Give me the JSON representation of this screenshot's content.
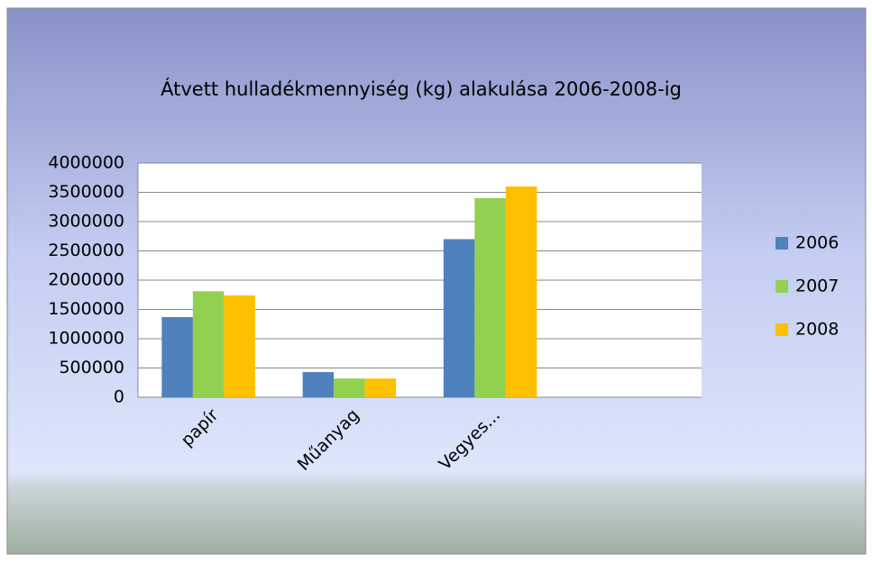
{
  "chart_data": {
    "type": "bar",
    "title": "Átvett hulladékmennyiség (kg) alakulása 2006-2008-ig",
    "categories": [
      "papír",
      "Műanyag",
      "Vegyes...",
      null
    ],
    "series": [
      {
        "name": "2006",
        "color": "#4f81bd",
        "values": [
          1370000,
          430000,
          2700000,
          null
        ]
      },
      {
        "name": "2007",
        "color": "#92d050",
        "values": [
          1810000,
          320000,
          3400000,
          null
        ]
      },
      {
        "name": "2008",
        "color": "#ffc000",
        "values": [
          1740000,
          320000,
          3600000,
          null
        ]
      }
    ],
    "ylim": [
      0,
      4000000
    ],
    "yticks": [
      0,
      500000,
      1000000,
      1500000,
      2000000,
      2500000,
      3000000,
      3500000,
      4000000
    ],
    "grid": true,
    "legend": "right"
  }
}
